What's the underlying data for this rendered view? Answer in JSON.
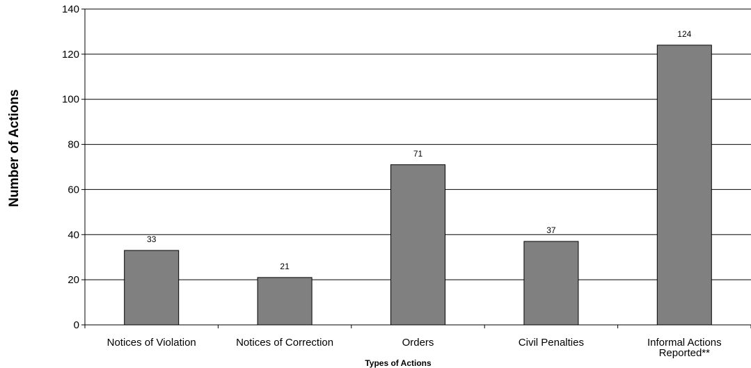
{
  "chart_data": {
    "type": "bar",
    "title": "",
    "xlabel": "Types of Actions",
    "ylabel": "Number of Actions",
    "categories": [
      [
        "Notices of Violation"
      ],
      [
        "Notices of Correction"
      ],
      [
        "Orders"
      ],
      [
        "Civil Penalties"
      ],
      [
        "Informal Actions",
        "Reported**"
      ]
    ],
    "values": [
      33,
      21,
      71,
      37,
      124
    ],
    "data_labels": [
      "33",
      "21",
      "71",
      "37",
      "124"
    ],
    "ylim": [
      0,
      140
    ],
    "yticks": [
      "0",
      "20",
      "40",
      "60",
      "80",
      "100",
      "120",
      "140"
    ],
    "grid": true,
    "legend": "none",
    "colors": {
      "bar": "#808080",
      "bar_edge": "#000000",
      "grid": "#000000",
      "text": "#000000"
    }
  }
}
